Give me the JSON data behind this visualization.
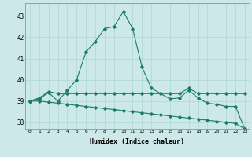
{
  "xlabel": "Humidex (Indice chaleur)",
  "ylabel": "",
  "background_color": "#cce8e8",
  "line_color": "#1a7a6e",
  "xlim": [
    -0.5,
    23.5
  ],
  "ylim": [
    37.7,
    43.6
  ],
  "yticks": [
    38,
    39,
    40,
    41,
    42,
    43
  ],
  "xticks": [
    0,
    1,
    2,
    3,
    4,
    5,
    6,
    7,
    8,
    9,
    10,
    11,
    12,
    13,
    14,
    15,
    16,
    17,
    18,
    19,
    20,
    21,
    22,
    23
  ],
  "line1_x": [
    0,
    1,
    2,
    3,
    4,
    5,
    6,
    7,
    8,
    9,
    10,
    11,
    12,
    13,
    14,
    15,
    16,
    17,
    18,
    19,
    20,
    21,
    22,
    23
  ],
  "line1_y": [
    39.0,
    39.1,
    39.4,
    39.0,
    39.5,
    40.0,
    41.3,
    41.8,
    42.4,
    42.5,
    43.2,
    42.4,
    40.6,
    39.6,
    39.35,
    39.1,
    39.15,
    39.5,
    39.15,
    38.9,
    38.85,
    38.75,
    38.75,
    37.7
  ],
  "line2_x": [
    0,
    1,
    2,
    3,
    4,
    5,
    6,
    7,
    8,
    9,
    10,
    11,
    12,
    13,
    14,
    15,
    16,
    17,
    18,
    19,
    20,
    21,
    22,
    23
  ],
  "line2_y": [
    39.0,
    39.15,
    39.45,
    39.35,
    39.35,
    39.35,
    39.35,
    39.35,
    39.35,
    39.35,
    39.35,
    39.35,
    39.35,
    39.35,
    39.35,
    39.35,
    39.35,
    39.6,
    39.35,
    39.35,
    39.35,
    39.35,
    39.35,
    39.35
  ],
  "line3_x": [
    0,
    1,
    2,
    3,
    4,
    5,
    6,
    7,
    8,
    9,
    10,
    11,
    12,
    13,
    14,
    15,
    16,
    17,
    18,
    19,
    20,
    21,
    22,
    23
  ],
  "line3_y": [
    39.0,
    39.0,
    38.95,
    38.9,
    38.85,
    38.8,
    38.75,
    38.7,
    38.65,
    38.6,
    38.55,
    38.5,
    38.45,
    38.4,
    38.35,
    38.3,
    38.25,
    38.2,
    38.15,
    38.1,
    38.05,
    38.0,
    37.95,
    37.7
  ]
}
